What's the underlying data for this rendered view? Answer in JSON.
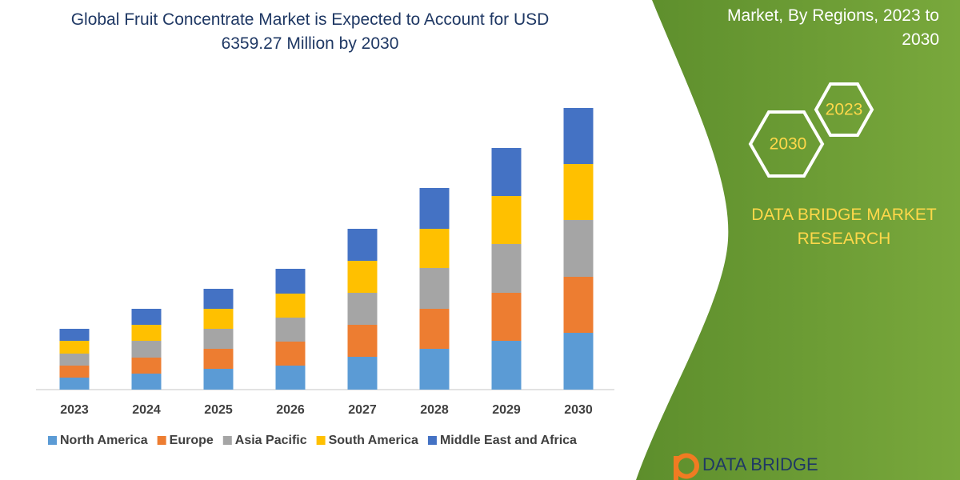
{
  "chart_data": {
    "type": "stacked_bar",
    "title": "Global Fruit Concentrate Market is Expected to Account for USD 6359.27 Million by 2030",
    "categories": [
      "2023",
      "2024",
      "2025",
      "2026",
      "2027",
      "2028",
      "2029",
      "2030"
    ],
    "series": [
      {
        "name": "North America",
        "color": "#5b9bd5",
        "values": [
          15,
          20,
          26,
          30,
          41,
          51,
          61,
          71
        ]
      },
      {
        "name": "Europe",
        "color": "#ed7d31",
        "values": [
          15,
          20,
          25,
          30,
          40,
          50,
          60,
          70
        ]
      },
      {
        "name": "Asia Pacific",
        "color": "#a5a5a5",
        "values": [
          15,
          21,
          25,
          30,
          40,
          51,
          61,
          71
        ]
      },
      {
        "name": "South America",
        "color": "#ffc000",
        "values": [
          16,
          20,
          25,
          30,
          40,
          49,
          60,
          70
        ]
      },
      {
        "name": "Middle East and Africa",
        "color": "#4472c4",
        "values": [
          15,
          20,
          25,
          31,
          40,
          51,
          60,
          70
        ]
      }
    ]
  },
  "panel": {
    "heading": "Market, By Regions, 2023 to 2030",
    "hexagons": [
      "2023",
      "2030"
    ],
    "brand": "DATA BRIDGE MARKET RESEARCH",
    "logo": "DATA BRIDGE"
  }
}
